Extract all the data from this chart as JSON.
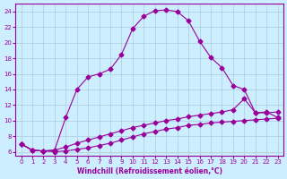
{
  "xlabel": "Windchill (Refroidissement éolien,°C)",
  "bg_color": "#cceeff",
  "grid_color": "#aaccdd",
  "line_color": "#990099",
  "xlim": [
    -0.5,
    23.5
  ],
  "ylim": [
    5.5,
    25.0
  ],
  "yticks": [
    6,
    8,
    10,
    12,
    14,
    16,
    18,
    20,
    22,
    24
  ],
  "xticks": [
    0,
    1,
    2,
    3,
    4,
    5,
    6,
    7,
    8,
    9,
    10,
    11,
    12,
    13,
    14,
    15,
    16,
    17,
    18,
    19,
    20,
    21,
    22,
    23
  ],
  "line1_x": [
    0,
    1,
    2,
    3,
    4,
    5,
    6,
    7,
    8,
    9,
    10,
    11,
    12,
    13,
    14,
    15,
    16,
    17,
    18,
    19,
    20,
    21,
    22,
    23
  ],
  "line1_y": [
    7.0,
    6.2,
    6.1,
    6.0,
    6.1,
    6.3,
    6.5,
    6.8,
    7.1,
    7.5,
    7.9,
    8.3,
    8.6,
    8.9,
    9.1,
    9.4,
    9.5,
    9.7,
    9.8,
    9.9,
    10.0,
    10.1,
    10.2,
    10.3
  ],
  "line2_x": [
    0,
    1,
    2,
    3,
    4,
    5,
    6,
    7,
    8,
    9,
    10,
    11,
    12,
    13,
    14,
    15,
    16,
    17,
    18,
    19,
    20,
    21,
    22,
    23
  ],
  "line2_y": [
    7.0,
    6.2,
    6.1,
    6.2,
    6.6,
    7.1,
    7.5,
    7.9,
    8.3,
    8.7,
    9.1,
    9.4,
    9.7,
    10.0,
    10.2,
    10.5,
    10.7,
    10.9,
    11.1,
    11.4,
    12.8,
    11.0,
    11.0,
    11.1
  ],
  "line3_x": [
    0,
    1,
    2,
    3,
    4,
    5,
    6,
    7,
    8,
    9,
    10,
    11,
    12,
    13,
    14,
    15,
    16,
    17,
    18,
    19,
    20,
    21,
    22,
    23
  ],
  "line3_y": [
    7.0,
    6.2,
    6.1,
    6.2,
    10.4,
    14.0,
    15.6,
    16.0,
    16.6,
    18.5,
    21.8,
    23.4,
    24.1,
    24.2,
    24.0,
    22.8,
    20.2,
    18.1,
    16.8,
    14.5,
    14.0,
    11.0,
    11.1,
    10.4
  ]
}
